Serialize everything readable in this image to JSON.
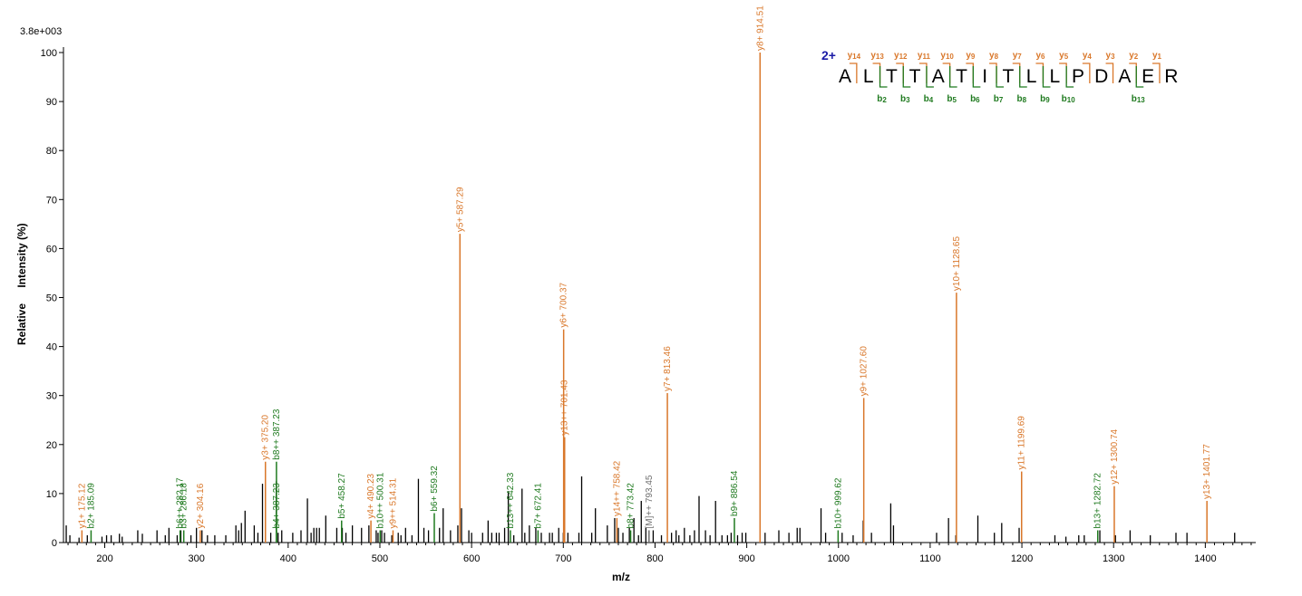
{
  "chart_data": {
    "type": "bar",
    "title": "",
    "scale_label": "3.8e+003",
    "xlabel": "m/z",
    "ylabel_parts": [
      "Relative",
      "Intensity (%)"
    ],
    "xlim": [
      155,
      1455
    ],
    "ylim": [
      0,
      100
    ],
    "x_ticks": [
      200,
      300,
      400,
      500,
      600,
      700,
      800,
      900,
      1000,
      1100,
      1200,
      1300,
      1400
    ],
    "y_ticks": [
      0,
      10,
      20,
      30,
      40,
      50,
      60,
      70,
      80,
      90,
      100
    ],
    "colors": {
      "y_ion": "#d9772a",
      "b_ion": "#1f7a1f",
      "other_ion": "#6e6e6e",
      "unassigned": "#000000",
      "charge": "#1a1aa6"
    },
    "annotated_peaks": [
      {
        "mz": 175.12,
        "intensity": 2.5,
        "label": "y1+ 175.12",
        "ion": "y"
      },
      {
        "mz": 185.09,
        "intensity": 2.5,
        "label": "b2+ 185.09",
        "ion": "b"
      },
      {
        "mz": 282.17,
        "intensity": 2.5,
        "label": "b6++ 282.17",
        "ion": "b"
      },
      {
        "mz": 286.18,
        "intensity": 2.5,
        "label": "b3+ 286.18",
        "ion": "b"
      },
      {
        "mz": 304.16,
        "intensity": 2.5,
        "label": "y2+ 304.16",
        "ion": "y"
      },
      {
        "mz": 375.2,
        "intensity": 16.5,
        "label": "y3+ 375.20",
        "ion": "y"
      },
      {
        "mz": 387.23,
        "intensity": 2.5,
        "label": "b4+ 387.23",
        "ion": "b"
      },
      {
        "mz": 387.23,
        "intensity": 16.5,
        "label": "b8++ 387.23",
        "ion": "b"
      },
      {
        "mz": 458.27,
        "intensity": 4.5,
        "label": "b5+ 458.27",
        "ion": "b"
      },
      {
        "mz": 490.23,
        "intensity": 4.5,
        "label": "y4+ 490.23",
        "ion": "y"
      },
      {
        "mz": 500.31,
        "intensity": 2.5,
        "label": "b10++ 500.31",
        "ion": "b"
      },
      {
        "mz": 514.31,
        "intensity": 2.5,
        "label": "y9++ 514.31",
        "ion": "y"
      },
      {
        "mz": 559.32,
        "intensity": 6,
        "label": "b6+ 559.32",
        "ion": "b"
      },
      {
        "mz": 587.29,
        "intensity": 63,
        "label": "y5+ 587.29",
        "ion": "y"
      },
      {
        "mz": 642.33,
        "intensity": 2.5,
        "label": "b13++ 642.33",
        "ion": "b"
      },
      {
        "mz": 672.41,
        "intensity": 2.5,
        "label": "b7+ 672.41",
        "ion": "b"
      },
      {
        "mz": 700.37,
        "intensity": 43.5,
        "label": "y6+ 700.37",
        "ion": "y"
      },
      {
        "mz": 701.43,
        "intensity": 21.5,
        "label": "y13++ 701.43",
        "ion": "y"
      },
      {
        "mz": 758.42,
        "intensity": 5,
        "label": "y14++ 758.42",
        "ion": "y"
      },
      {
        "mz": 773.42,
        "intensity": 2.5,
        "label": "b8+ 773.42",
        "ion": "b"
      },
      {
        "mz": 793.45,
        "intensity": 2.5,
        "label": "[M]++ 793.45",
        "ion": "other"
      },
      {
        "mz": 813.46,
        "intensity": 30.5,
        "label": "y7+ 813.46",
        "ion": "y"
      },
      {
        "mz": 886.54,
        "intensity": 5,
        "label": "b9+ 886.54",
        "ion": "b"
      },
      {
        "mz": 914.51,
        "intensity": 100,
        "label": "y8+ 914.51",
        "ion": "y"
      },
      {
        "mz": 999.62,
        "intensity": 2.5,
        "label": "b10+ 999.62",
        "ion": "b"
      },
      {
        "mz": 1027.6,
        "intensity": 29.5,
        "label": "y9+ 1027.60",
        "ion": "y"
      },
      {
        "mz": 1128.65,
        "intensity": 51,
        "label": "y10+ 1128.65",
        "ion": "y"
      },
      {
        "mz": 1199.69,
        "intensity": 14.5,
        "label": "y11+ 1199.69",
        "ion": "y"
      },
      {
        "mz": 1282.72,
        "intensity": 2.5,
        "label": "b13+ 1282.72",
        "ion": "b"
      },
      {
        "mz": 1300.74,
        "intensity": 11.5,
        "label": "y12+ 1300.74",
        "ion": "y"
      },
      {
        "mz": 1401.77,
        "intensity": 8.5,
        "label": "y13+ 1401.77",
        "ion": "y"
      }
    ],
    "unlabeled_peaks": [
      [
        158,
        3.5
      ],
      [
        162,
        1.5
      ],
      [
        172,
        1
      ],
      [
        181,
        1.5
      ],
      [
        197,
        1.2
      ],
      [
        202,
        1.5
      ],
      [
        207,
        1.5
      ],
      [
        216,
        1.8
      ],
      [
        219,
        1.2
      ],
      [
        236,
        2.5
      ],
      [
        241,
        1.8
      ],
      [
        257,
        2.5
      ],
      [
        266,
        1.5
      ],
      [
        270,
        3
      ],
      [
        279,
        1.5
      ],
      [
        283,
        2.5
      ],
      [
        294,
        1.5
      ],
      [
        300,
        3
      ],
      [
        306,
        2.5
      ],
      [
        312,
        1.5
      ],
      [
        320,
        1.5
      ],
      [
        332,
        1.5
      ],
      [
        343,
        3.5
      ],
      [
        346,
        2.5
      ],
      [
        349,
        4
      ],
      [
        353,
        6.5
      ],
      [
        363,
        3.5
      ],
      [
        367,
        2
      ],
      [
        372,
        12
      ],
      [
        381,
        2
      ],
      [
        387,
        12.5
      ],
      [
        389,
        2
      ],
      [
        393,
        2.5
      ],
      [
        405,
        2
      ],
      [
        414,
        2.5
      ],
      [
        421,
        9
      ],
      [
        425,
        2
      ],
      [
        428,
        3
      ],
      [
        431,
        3
      ],
      [
        434,
        3
      ],
      [
        441,
        5.5
      ],
      [
        453,
        3
      ],
      [
        459,
        3
      ],
      [
        463,
        2
      ],
      [
        470,
        3.5
      ],
      [
        480,
        3
      ],
      [
        488,
        3.5
      ],
      [
        496,
        2.5
      ],
      [
        498,
        2
      ],
      [
        502,
        2.5
      ],
      [
        505,
        2
      ],
      [
        513,
        1.5
      ],
      [
        520,
        2
      ],
      [
        523,
        1.5
      ],
      [
        528,
        3
      ],
      [
        535,
        1.5
      ],
      [
        542,
        13
      ],
      [
        548,
        3
      ],
      [
        553,
        2.5
      ],
      [
        565,
        3
      ],
      [
        569,
        7
      ],
      [
        577,
        2.5
      ],
      [
        585,
        3.5
      ],
      [
        589,
        7
      ],
      [
        597,
        2.5
      ],
      [
        600,
        2
      ],
      [
        612,
        2
      ],
      [
        618,
        4.5
      ],
      [
        622,
        2
      ],
      [
        627,
        2
      ],
      [
        630,
        2
      ],
      [
        636,
        3
      ],
      [
        640,
        10.5
      ],
      [
        646,
        1.5
      ],
      [
        655,
        11
      ],
      [
        658,
        2
      ],
      [
        663,
        3.5
      ],
      [
        670,
        3
      ],
      [
        676,
        2
      ],
      [
        685,
        2
      ],
      [
        688,
        2
      ],
      [
        695,
        3
      ],
      [
        700,
        2
      ],
      [
        705,
        2
      ],
      [
        717,
        2
      ],
      [
        720,
        13.5
      ],
      [
        731,
        2
      ],
      [
        735,
        7
      ],
      [
        748,
        3.5
      ],
      [
        756,
        5
      ],
      [
        760,
        3
      ],
      [
        765,
        2
      ],
      [
        772,
        3
      ],
      [
        777,
        5
      ],
      [
        782,
        1.5
      ],
      [
        785,
        8.5
      ],
      [
        790,
        3
      ],
      [
        798,
        2.5
      ],
      [
        807,
        1.5
      ],
      [
        818,
        2
      ],
      [
        823,
        2.5
      ],
      [
        826,
        1.5
      ],
      [
        832,
        3
      ],
      [
        838,
        1.5
      ],
      [
        843,
        2.5
      ],
      [
        848,
        9.5
      ],
      [
        855,
        2.5
      ],
      [
        860,
        1.5
      ],
      [
        866,
        8.5
      ],
      [
        873,
        1.5
      ],
      [
        879,
        1.5
      ],
      [
        883,
        2
      ],
      [
        890,
        1.5
      ],
      [
        895,
        2
      ],
      [
        899,
        2
      ],
      [
        920,
        2
      ],
      [
        935,
        2.5
      ],
      [
        946,
        2
      ],
      [
        955,
        3
      ],
      [
        958,
        3
      ],
      [
        981,
        7
      ],
      [
        986,
        2
      ],
      [
        1004,
        2
      ],
      [
        1016,
        1.5
      ],
      [
        1027,
        4.5
      ],
      [
        1036,
        2
      ],
      [
        1057,
        8
      ],
      [
        1060,
        3.5
      ],
      [
        1107,
        2
      ],
      [
        1120,
        5
      ],
      [
        1128,
        1.5
      ],
      [
        1152,
        5.5
      ],
      [
        1170,
        2
      ],
      [
        1178,
        4
      ],
      [
        1197,
        3
      ],
      [
        1236,
        1.5
      ],
      [
        1248,
        1.2
      ],
      [
        1262,
        1.5
      ],
      [
        1268,
        1.5
      ],
      [
        1285,
        2.5
      ],
      [
        1302,
        1.5
      ],
      [
        1318,
        2.5
      ],
      [
        1340,
        1.5
      ],
      [
        1368,
        2
      ],
      [
        1380,
        2
      ],
      [
        1432,
        2
      ]
    ],
    "sequence": {
      "charge": "2+",
      "residues": [
        "A",
        "L",
        "T",
        "T",
        "A",
        "T",
        "I",
        "T",
        "L",
        "L",
        "P",
        "D",
        "A",
        "E",
        "R"
      ],
      "y_ions": [
        {
          "after": 1,
          "ion": "y",
          "num": "14"
        },
        {
          "after": 2,
          "ion": "y",
          "num": "13"
        },
        {
          "after": 3,
          "ion": "y",
          "num": "12"
        },
        {
          "after": 4,
          "ion": "y",
          "num": "11"
        },
        {
          "after": 5,
          "ion": "y",
          "num": "10"
        },
        {
          "after": 6,
          "ion": "y",
          "num": "9"
        },
        {
          "after": 7,
          "ion": "y",
          "num": "8"
        },
        {
          "after": 8,
          "ion": "y",
          "num": "7"
        },
        {
          "after": 9,
          "ion": "y",
          "num": "6"
        },
        {
          "after": 10,
          "ion": "y",
          "num": "5"
        },
        {
          "after": 11,
          "ion": "y",
          "num": "4"
        },
        {
          "after": 12,
          "ion": "y",
          "num": "3"
        },
        {
          "after": 13,
          "ion": "y",
          "num": "2"
        },
        {
          "after": 14,
          "ion": "y",
          "num": "1"
        }
      ],
      "b_ions": [
        {
          "after": 2,
          "ion": "b",
          "num": "2"
        },
        {
          "after": 3,
          "ion": "b",
          "num": "3"
        },
        {
          "after": 4,
          "ion": "b",
          "num": "4"
        },
        {
          "after": 5,
          "ion": "b",
          "num": "5"
        },
        {
          "after": 6,
          "ion": "b",
          "num": "6"
        },
        {
          "after": 7,
          "ion": "b",
          "num": "7"
        },
        {
          "after": 8,
          "ion": "b",
          "num": "8"
        },
        {
          "after": 9,
          "ion": "b",
          "num": "9"
        },
        {
          "after": 10,
          "ion": "b",
          "num": "10"
        },
        {
          "after": 13,
          "ion": "b",
          "num": "13"
        }
      ]
    }
  }
}
